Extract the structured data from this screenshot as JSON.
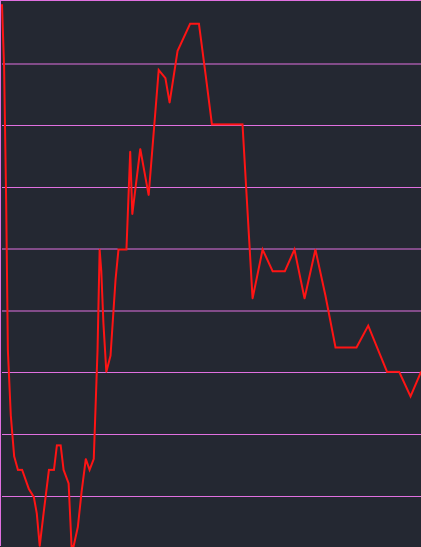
{
  "colors": {
    "background": "#242832",
    "grid": "#e070e0",
    "series": "#ff1414",
    "frame": "#e070e0"
  },
  "chart_data": {
    "type": "line",
    "title": "",
    "xlabel": "",
    "ylabel": "",
    "grid": "horizontal",
    "legend": "none",
    "xlim": [
      0,
      100
    ],
    "ylim": [
      0,
      100
    ],
    "horizontal_grid_values": [
      9.1,
      20.5,
      31.9,
      43.2,
      54.6,
      65.9,
      77.3,
      88.6
    ],
    "series": [
      {
        "values": [
          [
            0.0,
            99.5
          ],
          [
            0.5,
            88.0
          ],
          [
            1.0,
            63.0
          ],
          [
            1.4,
            36.0
          ],
          [
            2.1,
            24.0
          ],
          [
            2.9,
            16.5
          ],
          [
            3.8,
            14.0
          ],
          [
            4.8,
            14.0
          ],
          [
            6.4,
            10.5
          ],
          [
            7.6,
            9.0
          ],
          [
            8.3,
            6.0
          ],
          [
            9.0,
            0.0
          ],
          [
            10.0,
            6.5
          ],
          [
            11.2,
            14.0
          ],
          [
            12.4,
            14.0
          ],
          [
            13.1,
            18.5
          ],
          [
            14.0,
            18.5
          ],
          [
            14.7,
            14.0
          ],
          [
            15.9,
            11.5
          ],
          [
            16.6,
            0.0
          ],
          [
            17.1,
            0.0
          ],
          [
            18.1,
            3.5
          ],
          [
            19.0,
            10.0
          ],
          [
            20.0,
            16.0
          ],
          [
            20.9,
            14.0
          ],
          [
            21.9,
            16.0
          ],
          [
            22.8,
            36.0
          ],
          [
            23.3,
            54.5
          ],
          [
            23.7,
            50.5
          ],
          [
            24.2,
            41.0
          ],
          [
            24.9,
            32.0
          ],
          [
            25.9,
            35.0
          ],
          [
            27.1,
            49.0
          ],
          [
            27.8,
            54.5
          ],
          [
            29.7,
            54.5
          ],
          [
            30.6,
            72.5
          ],
          [
            31.1,
            61.0
          ],
          [
            33.0,
            73.0
          ],
          [
            35.0,
            64.5
          ],
          [
            37.4,
            87.5
          ],
          [
            39.0,
            86.0
          ],
          [
            40.0,
            81.5
          ],
          [
            41.9,
            91.0
          ],
          [
            44.9,
            96.0
          ],
          [
            47.0,
            96.0
          ],
          [
            48.7,
            86.0
          ],
          [
            50.1,
            77.5
          ],
          [
            57.4,
            77.5
          ],
          [
            59.8,
            45.5
          ],
          [
            62.2,
            54.5
          ],
          [
            64.6,
            50.5
          ],
          [
            67.5,
            50.5
          ],
          [
            69.8,
            54.5
          ],
          [
            72.2,
            45.5
          ],
          [
            74.8,
            54.5
          ],
          [
            77.2,
            46.0
          ],
          [
            79.6,
            36.5
          ],
          [
            84.6,
            36.5
          ],
          [
            87.4,
            40.5
          ],
          [
            91.9,
            32.0
          ],
          [
            94.8,
            32.0
          ],
          [
            97.5,
            27.5
          ],
          [
            100.0,
            32.0
          ]
        ]
      }
    ]
  }
}
